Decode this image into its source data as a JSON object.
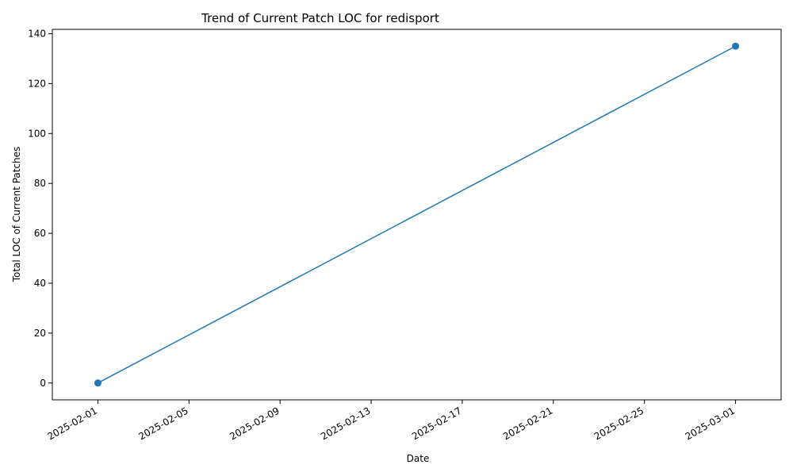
{
  "chart_data": {
    "type": "line",
    "title": "Trend of Current Patch LOC for redisport",
    "xlabel": "Date",
    "ylabel": "Total LOC of Current Patches",
    "x_ticks": [
      "2025-02-01",
      "2025-02-05",
      "2025-02-09",
      "2025-02-13",
      "2025-02-17",
      "2025-02-21",
      "2025-02-25",
      "2025-03-01"
    ],
    "y_ticks": [
      0,
      20,
      40,
      60,
      80,
      100,
      120,
      140
    ],
    "xlim": [
      "2025-01-30",
      "2025-03-03"
    ],
    "ylim": [
      -6.75,
      141.75
    ],
    "grid": false,
    "series": [
      {
        "color": "#1f77b4",
        "marker": "circle",
        "points": [
          {
            "x": "2025-02-01",
            "y": 0
          },
          {
            "x": "2025-03-01",
            "y": 135
          }
        ]
      }
    ]
  }
}
